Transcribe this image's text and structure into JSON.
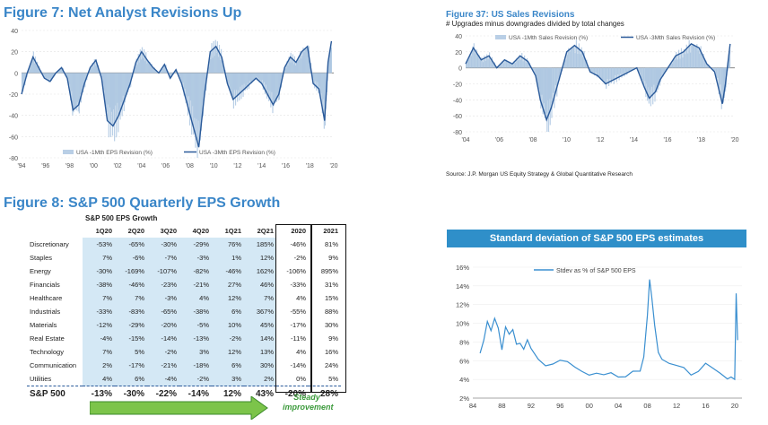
{
  "fig7": {
    "title": "Figure 7: Net Analyst Revisions Up",
    "chart_data": {
      "type": "area",
      "title": "Figure 7: Net Analyst Revisions Up",
      "ylim": [
        -80,
        40
      ],
      "yticks": [
        40,
        20,
        0,
        -20,
        -40,
        -60,
        -80
      ],
      "xticks": [
        "'94",
        "'96",
        "'98",
        "'00",
        "'02",
        "'04",
        "'06",
        "'08",
        "'10",
        "'12",
        "'14",
        "'16",
        "'18",
        "'20"
      ],
      "legend": [
        "USA -1Mth EPS Revision (%)",
        "USA -3Mth EPS Revision (%)"
      ],
      "legend_position": "bottom-left",
      "series": [
        {
          "name": "USA -3Mth EPS Revision (%)",
          "x": [
            1993.5,
            1994,
            1994.5,
            1995,
            1995.5,
            1996,
            1996.5,
            1997,
            1997.5,
            1998,
            1998.5,
            1999,
            1999.5,
            2000,
            2000.5,
            2001,
            2001.5,
            2002,
            2002.5,
            2003,
            2003.5,
            2004,
            2004.5,
            2005,
            2005.5,
            2006,
            2006.5,
            2007,
            2007.5,
            2008,
            2008.5,
            2009,
            2009.5,
            2010,
            2010.5,
            2011,
            2011.5,
            2012,
            2012.5,
            2013,
            2013.5,
            2014,
            2014.5,
            2015,
            2015.5,
            2016,
            2016.5,
            2017,
            2017.5,
            2018,
            2018.5,
            2019,
            2019.5,
            2020,
            2020.3,
            2020.6
          ],
          "values": [
            -20,
            0,
            15,
            5,
            -5,
            -8,
            0,
            5,
            -5,
            -35,
            -30,
            -10,
            5,
            12,
            -5,
            -45,
            -50,
            -40,
            -25,
            -10,
            10,
            20,
            12,
            5,
            0,
            8,
            -5,
            3,
            -10,
            -30,
            -50,
            -70,
            -20,
            20,
            25,
            15,
            -10,
            -25,
            -20,
            -15,
            -10,
            -5,
            -10,
            -20,
            -30,
            -20,
            5,
            15,
            10,
            20,
            25,
            -10,
            -15,
            -45,
            10,
            30
          ]
        }
      ]
    }
  },
  "fig37": {
    "title": "Figure 37: US Sales Revisions",
    "subtitle": "# Upgrades  minus  downgrades  divided  by  total changes",
    "source": "Source: J.P. Morgan US Equity Strategy & Global Quantitative Research",
    "chart_data": {
      "type": "area",
      "title": "Figure 37: US Sales Revisions",
      "ylim": [
        -80,
        40
      ],
      "yticks": [
        40,
        20,
        0,
        -20,
        -40,
        -60,
        -80
      ],
      "xticks": [
        "'04",
        "'06",
        "'08",
        "'10",
        "'12",
        "'14",
        "'16",
        "'18",
        "'20"
      ],
      "legend": [
        "USA -1Mth Sales Revision (%)",
        "USA -3Mth Sales Revision (%)"
      ],
      "legend_position": "top",
      "series": [
        {
          "name": "USA -3Mth Sales Revision (%)",
          "x": [
            2003.5,
            2004,
            2004.5,
            2005,
            2005.5,
            2006,
            2006.5,
            2007,
            2007.5,
            2008,
            2008.3,
            2008.7,
            2009,
            2009.5,
            2010,
            2010.5,
            2011,
            2011.5,
            2012,
            2012.5,
            2013,
            2013.5,
            2014,
            2014.5,
            2015,
            2015.3,
            2015.7,
            2016,
            2016.5,
            2017,
            2017.5,
            2018,
            2018.5,
            2019,
            2019.5,
            2020,
            2020.2,
            2020.5
          ],
          "values": [
            5,
            25,
            10,
            15,
            0,
            10,
            5,
            15,
            8,
            -10,
            -40,
            -65,
            -50,
            -15,
            20,
            28,
            20,
            -5,
            -10,
            -20,
            -15,
            -10,
            -5,
            0,
            -25,
            -38,
            -30,
            -15,
            0,
            15,
            20,
            30,
            25,
            5,
            -5,
            -45,
            -20,
            30
          ]
        }
      ]
    }
  },
  "fig8": {
    "title": "Figure 8: S&P 500 Quarterly EPS Growth",
    "caption": "S&P 500 EPS Growth",
    "chart_data": {
      "type": "table",
      "columns": [
        "1Q20",
        "2Q20",
        "3Q20",
        "4Q20",
        "1Q21",
        "2Q21",
        "2020",
        "2021"
      ],
      "rows": [
        {
          "label": "Discretionary",
          "values": [
            "-53%",
            "-65%",
            "-30%",
            "-29%",
            "76%",
            "185%",
            "-46%",
            "81%"
          ]
        },
        {
          "label": "Staples",
          "values": [
            "7%",
            "-6%",
            "-7%",
            "-3%",
            "1%",
            "12%",
            "-2%",
            "9%"
          ]
        },
        {
          "label": "Energy",
          "values": [
            "-30%",
            "-169%",
            "-107%",
            "-82%",
            "-46%",
            "162%",
            "-106%",
            "895%"
          ]
        },
        {
          "label": "Financials",
          "values": [
            "-38%",
            "-46%",
            "-23%",
            "-21%",
            "27%",
            "46%",
            "-33%",
            "31%"
          ]
        },
        {
          "label": "Healthcare",
          "values": [
            "7%",
            "7%",
            "-3%",
            "4%",
            "12%",
            "7%",
            "4%",
            "15%"
          ]
        },
        {
          "label": "Industrials",
          "values": [
            "-33%",
            "-83%",
            "-65%",
            "-38%",
            "6%",
            "367%",
            "-55%",
            "88%"
          ]
        },
        {
          "label": "Materials",
          "values": [
            "-12%",
            "-29%",
            "-20%",
            "-5%",
            "10%",
            "45%",
            "-17%",
            "30%"
          ]
        },
        {
          "label": "Real Estate",
          "values": [
            "-4%",
            "-15%",
            "-14%",
            "-13%",
            "-2%",
            "14%",
            "-11%",
            "9%"
          ]
        },
        {
          "label": "Technology",
          "values": [
            "7%",
            "5%",
            "-2%",
            "3%",
            "12%",
            "13%",
            "4%",
            "16%"
          ]
        },
        {
          "label": "Communication",
          "values": [
            "2%",
            "-17%",
            "-21%",
            "-18%",
            "6%",
            "30%",
            "-14%",
            "24%"
          ]
        },
        {
          "label": "Utilities",
          "values": [
            "4%",
            "6%",
            "-4%",
            "-2%",
            "3%",
            "2%",
            "0%",
            "5%"
          ]
        }
      ],
      "total": {
        "label": "S&P 500",
        "values": [
          "-13%",
          "-30%",
          "-22%",
          "-14%",
          "12%",
          "43%",
          "-20%",
          "28%"
        ]
      }
    },
    "annotation": "Steady improvement"
  },
  "stdev": {
    "title": "Standard deviation of S&P 500 EPS estimates",
    "chart_data": {
      "type": "line",
      "title": "Standard deviation of S&P 500 EPS estimates",
      "ylim": [
        2,
        16
      ],
      "yticks": [
        "16%",
        "14%",
        "12%",
        "10%",
        "8%",
        "6%",
        "4%",
        "2%"
      ],
      "xlim": [
        1984,
        2021
      ],
      "xticks": [
        "84",
        "88",
        "92",
        "96",
        "00",
        "04",
        "08",
        "12",
        "16",
        "20"
      ],
      "legend": [
        "Stdev as % of S&P 500 EPS"
      ],
      "legend_position": "top-left",
      "series": [
        {
          "name": "Stdev as % of S&P 500 EPS",
          "x": [
            1985,
            1985.5,
            1986,
            1986.5,
            1987,
            1987.5,
            1988,
            1988.5,
            1989,
            1989.5,
            1990,
            1990.5,
            1991,
            1991.5,
            1992,
            1993,
            1994,
            1995,
            1996,
            1997,
            1998,
            1999,
            2000,
            2001,
            2002,
            2003,
            2004,
            2005,
            2006,
            2007,
            2007.5,
            2008,
            2008.3,
            2008.6,
            2009,
            2009.5,
            2010,
            2011,
            2012,
            2013,
            2014,
            2015,
            2016,
            2017,
            2018,
            2019,
            2019.5,
            2020,
            2020.2,
            2020.4
          ],
          "values": [
            6.8,
            8.5,
            10.4,
            9.0,
            10.2,
            9.5,
            7.5,
            9.8,
            8.6,
            9.0,
            7.8,
            8.2,
            7.4,
            8.0,
            7.0,
            6.2,
            5.8,
            5.8,
            5.8,
            5.6,
            5.4,
            5.2,
            4.6,
            4.4,
            4.2,
            4.8,
            4.6,
            4.4,
            4.6,
            4.6,
            6.5,
            11.2,
            14.8,
            12.5,
            9.5,
            7.0,
            6.5,
            5.8,
            5.2,
            5.0,
            4.6,
            5.2,
            5.8,
            4.9,
            4.4,
            4.2,
            4.6,
            4.0,
            13.2,
            8.2
          ]
        }
      ]
    }
  }
}
